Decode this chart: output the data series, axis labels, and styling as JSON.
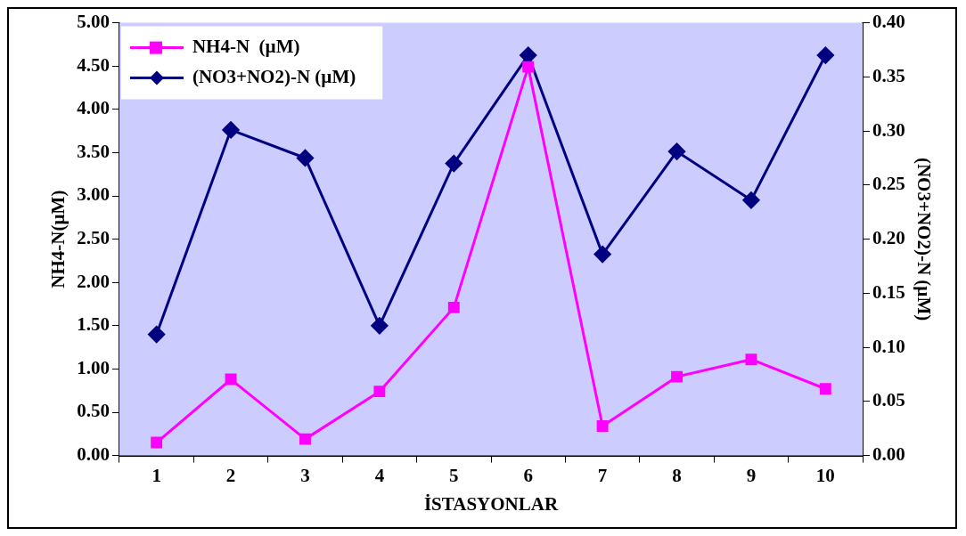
{
  "chart_data": {
    "type": "line",
    "xlabel": "İSTASYONLAR",
    "ylabel": "NH4-N(µM)",
    "y2label": "(NO3+NO2)-N (µM)",
    "categories": [
      "1",
      "2",
      "3",
      "4",
      "5",
      "6",
      "7",
      "8",
      "9",
      "10"
    ],
    "series": [
      {
        "name": "NH4-N  (µM)",
        "color": "#ff00ff",
        "marker": "square",
        "values": [
          0.15,
          0.88,
          0.19,
          0.74,
          1.71,
          4.49,
          0.34,
          0.91,
          1.11,
          0.77
        ]
      },
      {
        "name": "(NO3+NO2)-N (µM)",
        "color": "#000080",
        "marker": "diamond",
        "axis": "y2",
        "values": [
          0.112,
          0.301,
          0.275,
          0.12,
          0.27,
          0.37,
          0.186,
          0.281,
          0.236,
          0.37
        ]
      }
    ],
    "ylim": [
      0,
      5
    ],
    "yticks": [
      {
        "value": 0,
        "label": "0.00"
      },
      {
        "value": 0.5,
        "label": "0.50"
      },
      {
        "value": 1,
        "label": "1.00"
      },
      {
        "value": 1.5,
        "label": "1.50"
      },
      {
        "value": 2,
        "label": "2.00"
      },
      {
        "value": 2.5,
        "label": "2.50"
      },
      {
        "value": 3,
        "label": "3.00"
      },
      {
        "value": 3.5,
        "label": "3.50"
      },
      {
        "value": 4,
        "label": "4.00"
      },
      {
        "value": 4.5,
        "label": "4.50"
      },
      {
        "value": 5,
        "label": "5.00"
      }
    ],
    "y2lim": [
      0,
      0.4
    ],
    "y2ticks": [
      {
        "value": 0,
        "label": "0.00"
      },
      {
        "value": 0.05,
        "label": "0.05"
      },
      {
        "value": 0.1,
        "label": "0.10"
      },
      {
        "value": 0.15,
        "label": "0.15"
      },
      {
        "value": 0.2,
        "label": "0.20"
      },
      {
        "value": 0.25,
        "label": "0.25"
      },
      {
        "value": 0.3,
        "label": "0.30"
      },
      {
        "value": 0.35,
        "label": "0.35"
      },
      {
        "value": 0.4,
        "label": "0.40"
      }
    ],
    "grid": false,
    "legend": "top left",
    "line_style": "solid"
  }
}
